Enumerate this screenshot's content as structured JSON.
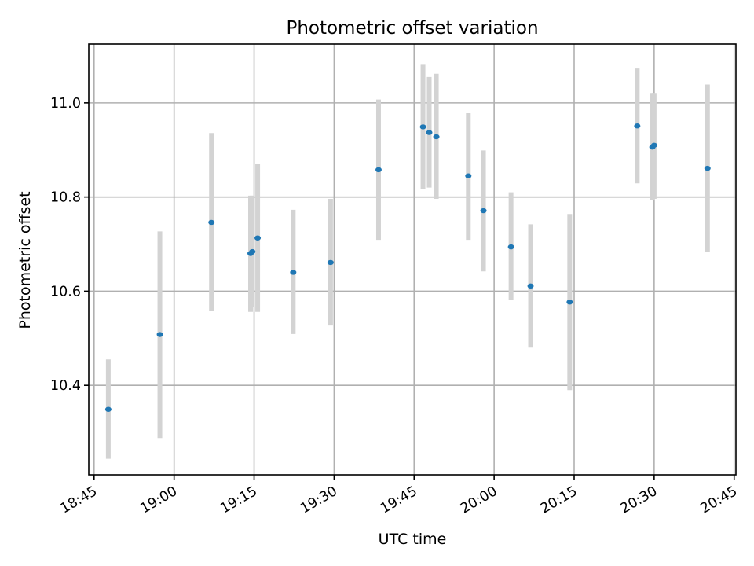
{
  "chart_data": {
    "type": "scatter",
    "title": "Photometric offset variation",
    "xlabel": "UTC time",
    "ylabel": "Photometric offset",
    "x_tick_labels": [
      "18:45",
      "19:00",
      "19:15",
      "19:30",
      "19:45",
      "20:00",
      "20:15",
      "20:30",
      "20:45"
    ],
    "x_ticks": [
      "18:45",
      "19:00",
      "19:15",
      "19:30",
      "19:45",
      "20:00",
      "20:15",
      "20:30",
      "20:45"
    ],
    "y_ticks": [
      10.4,
      10.6,
      10.8,
      11.0
    ],
    "y_tick_labels": [
      "10.4",
      "10.6",
      "10.8",
      "11.0"
    ],
    "xlim": [
      "18:44",
      "20:45:20"
    ],
    "ylim": [
      10.21,
      11.125
    ],
    "grid": true,
    "colors": {
      "marker": "#1f77b4",
      "errorbar": "#d3d3d3",
      "grid": "#b0b0b0"
    },
    "points": [
      {
        "x": "18:47:40",
        "y": 10.349,
        "err_low": 10.244,
        "err_high": 10.455
      },
      {
        "x": "18:57:20",
        "y": 10.508,
        "err_low": 10.288,
        "err_high": 10.727
      },
      {
        "x": "19:07:00",
        "y": 10.746,
        "err_low": 10.558,
        "err_high": 10.936
      },
      {
        "x": "19:14:20",
        "y": 10.68,
        "err_low": 10.556,
        "err_high": 10.803
      },
      {
        "x": "19:14:40",
        "y": 10.684,
        "err_low": 10.566,
        "err_high": 10.803
      },
      {
        "x": "19:15:40",
        "y": 10.713,
        "err_low": 10.556,
        "err_high": 10.87
      },
      {
        "x": "19:22:20",
        "y": 10.64,
        "err_low": 10.509,
        "err_high": 10.773
      },
      {
        "x": "19:29:20",
        "y": 10.661,
        "err_low": 10.527,
        "err_high": 10.796
      },
      {
        "x": "19:38:20",
        "y": 10.858,
        "err_low": 10.709,
        "err_high": 11.007
      },
      {
        "x": "19:46:40",
        "y": 10.949,
        "err_low": 10.816,
        "err_high": 11.081
      },
      {
        "x": "19:47:50",
        "y": 10.937,
        "err_low": 10.82,
        "err_high": 11.055
      },
      {
        "x": "19:49:10",
        "y": 10.928,
        "err_low": 10.796,
        "err_high": 11.062
      },
      {
        "x": "19:55:10",
        "y": 10.845,
        "err_low": 10.709,
        "err_high": 10.978
      },
      {
        "x": "19:58:00",
        "y": 10.771,
        "err_low": 10.642,
        "err_high": 10.899
      },
      {
        "x": "20:03:10",
        "y": 10.694,
        "err_low": 10.582,
        "err_high": 10.81
      },
      {
        "x": "20:06:50",
        "y": 10.611,
        "err_low": 10.48,
        "err_high": 10.742
      },
      {
        "x": "20:14:10",
        "y": 10.577,
        "err_low": 10.39,
        "err_high": 10.764
      },
      {
        "x": "20:26:50",
        "y": 10.951,
        "err_low": 10.829,
        "err_high": 11.073
      },
      {
        "x": "20:29:40",
        "y": 10.906,
        "err_low": 10.794,
        "err_high": 11.021
      },
      {
        "x": "20:30:00",
        "y": 10.91,
        "err_low": 10.796,
        "err_high": 11.021
      },
      {
        "x": "20:40:00",
        "y": 10.861,
        "err_low": 10.683,
        "err_high": 11.039
      }
    ]
  }
}
